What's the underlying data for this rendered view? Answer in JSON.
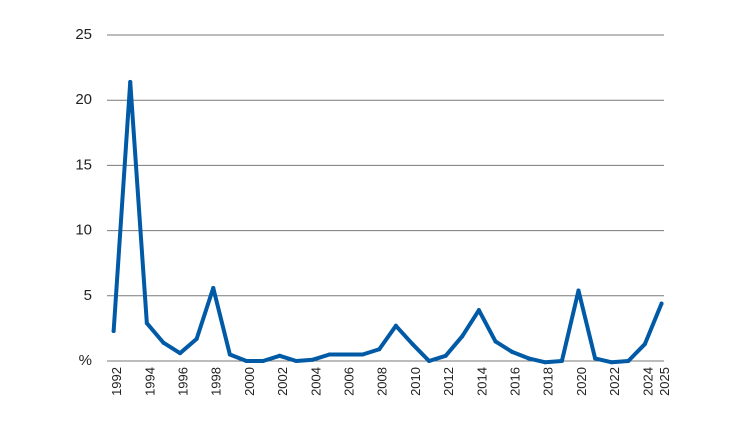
{
  "chart_data": {
    "type": "line",
    "title": "",
    "xlabel": "",
    "ylabel": "",
    "ylim": [
      0,
      25
    ],
    "grid": true,
    "y_ticks": [
      "%",
      "5",
      "10",
      "15",
      "20",
      "25"
    ],
    "x_tick_labels": [
      "1992",
      "1994",
      "1996",
      "1998",
      "2000",
      "2002",
      "2004",
      "2006",
      "2008",
      "2010",
      "2012",
      "2014",
      "2016",
      "2018",
      "2020",
      "2022",
      "2024",
      "2025"
    ],
    "x": [
      1992,
      1993,
      1994,
      1995,
      1996,
      1997,
      1998,
      1999,
      2000,
      2001,
      2002,
      2003,
      2004,
      2005,
      2006,
      2007,
      2008,
      2009,
      2010,
      2011,
      2012,
      2013,
      2014,
      2015,
      2016,
      2017,
      2018,
      2019,
      2020,
      2021,
      2022,
      2023,
      2024,
      2025
    ],
    "series": [
      {
        "values": [
          2.3,
          21.4,
          2.9,
          1.4,
          0.6,
          1.7,
          5.6,
          0.5,
          0.0,
          0.0,
          0.4,
          0.0,
          0.1,
          0.5,
          0.5,
          0.5,
          0.9,
          2.7,
          1.3,
          0.0,
          0.4,
          1.9,
          3.9,
          1.5,
          0.7,
          0.2,
          -0.1,
          0.0,
          5.4,
          0.2,
          -0.1,
          0.0,
          1.3,
          4.4
        ],
        "color": "#005aa6"
      }
    ]
  }
}
